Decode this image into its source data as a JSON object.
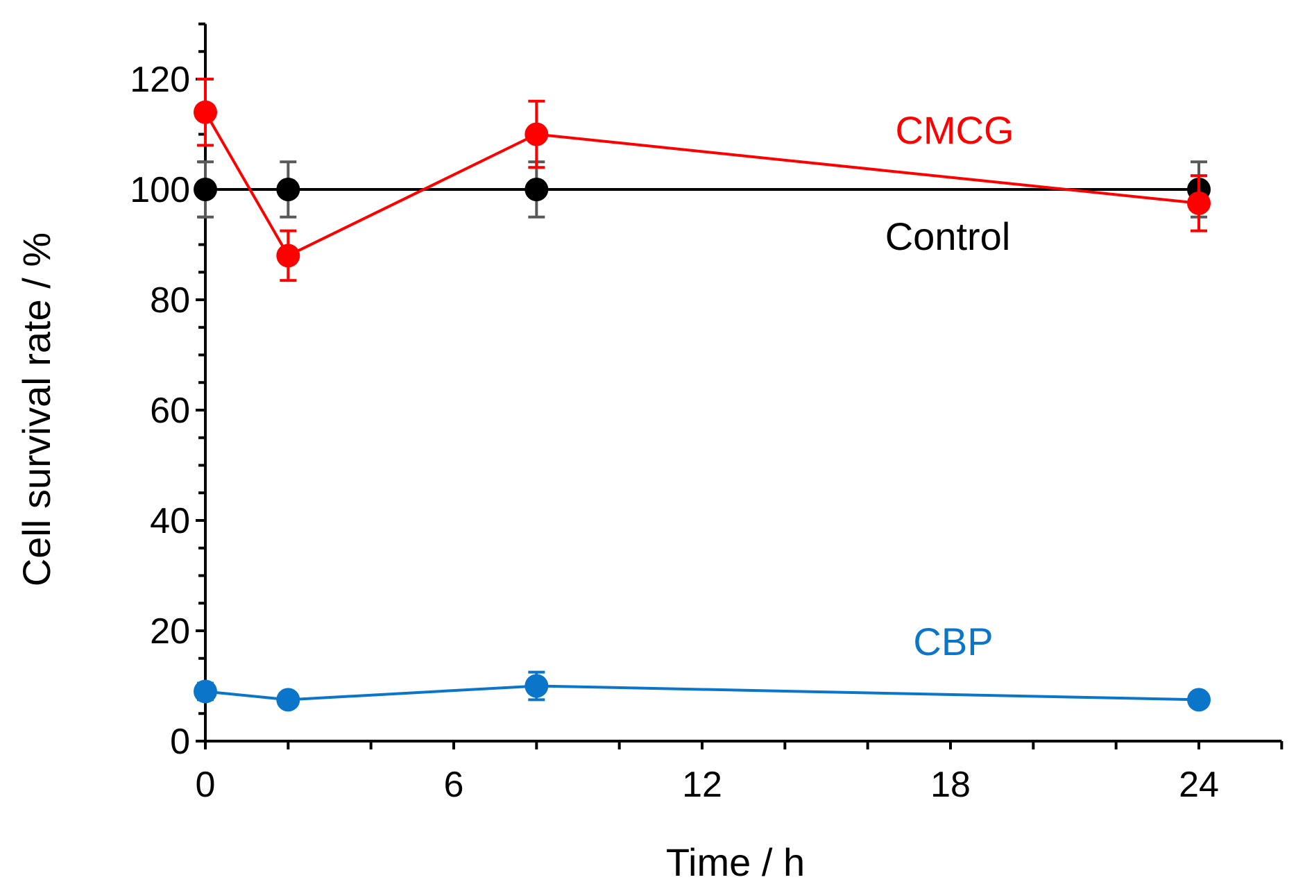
{
  "chart_data": {
    "type": "line",
    "title": "",
    "xlabel": "Time / h",
    "ylabel": "Cell survival rate / %",
    "xlim": [
      0,
      26
    ],
    "ylim": [
      0,
      130
    ],
    "xticks": [
      0,
      6,
      12,
      18,
      24
    ],
    "xminor_step": 2,
    "yticks": [
      0,
      20,
      40,
      60,
      80,
      100,
      120
    ],
    "yminor_step": 5,
    "grid": false,
    "series": [
      {
        "name": "Control",
        "color": "#000000",
        "errcolor": "#595959",
        "x": [
          0,
          2,
          8,
          24
        ],
        "values": [
          100,
          100,
          100,
          100
        ],
        "error": [
          5,
          5,
          5,
          5
        ]
      },
      {
        "name": "CMCG",
        "color": "#ff0000",
        "errcolor": "#ff0000",
        "x": [
          0,
          2,
          8,
          24
        ],
        "values": [
          114,
          88,
          110,
          97.5
        ],
        "error": [
          6,
          4.5,
          6,
          5
        ]
      },
      {
        "name": "CBP",
        "color": "#0a75c9",
        "errcolor": "#0a75c9",
        "x": [
          0,
          2,
          8,
          24
        ],
        "values": [
          9,
          7.5,
          10,
          7.5
        ],
        "error": [
          1.5,
          1,
          2.5,
          1
        ]
      }
    ],
    "annotations": {
      "cmcg": "CMCG",
      "control": "Control",
      "cbp": "CBP"
    }
  }
}
